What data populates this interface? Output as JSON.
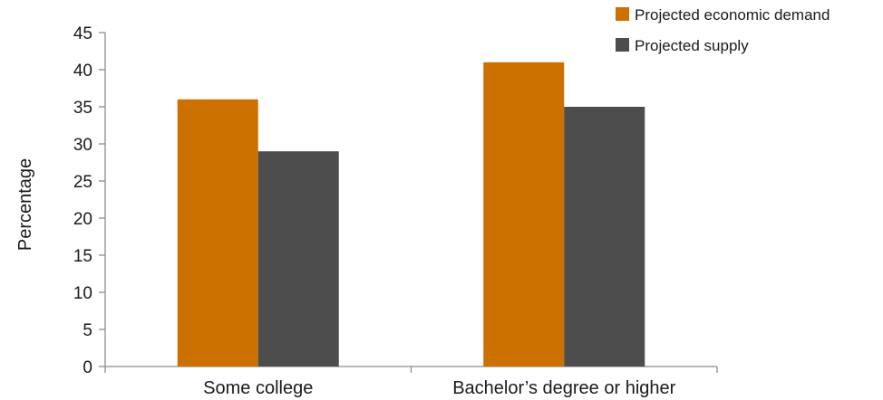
{
  "chart_data": {
    "type": "bar",
    "categories": [
      "Some college",
      "Bachelor’s degree or higher"
    ],
    "series": [
      {
        "name": "Projected economic demand",
        "values": [
          36,
          41
        ],
        "color": "#cc7000"
      },
      {
        "name": "Projected supply",
        "values": [
          29,
          35
        ],
        "color": "#4d4d4d"
      }
    ],
    "ylabel": "Percentage",
    "ylim": [
      0,
      45
    ],
    "yticks": [
      0,
      5,
      10,
      15,
      20,
      25,
      30,
      35,
      40,
      45
    ],
    "grid": false,
    "legend_position": "top-right"
  }
}
